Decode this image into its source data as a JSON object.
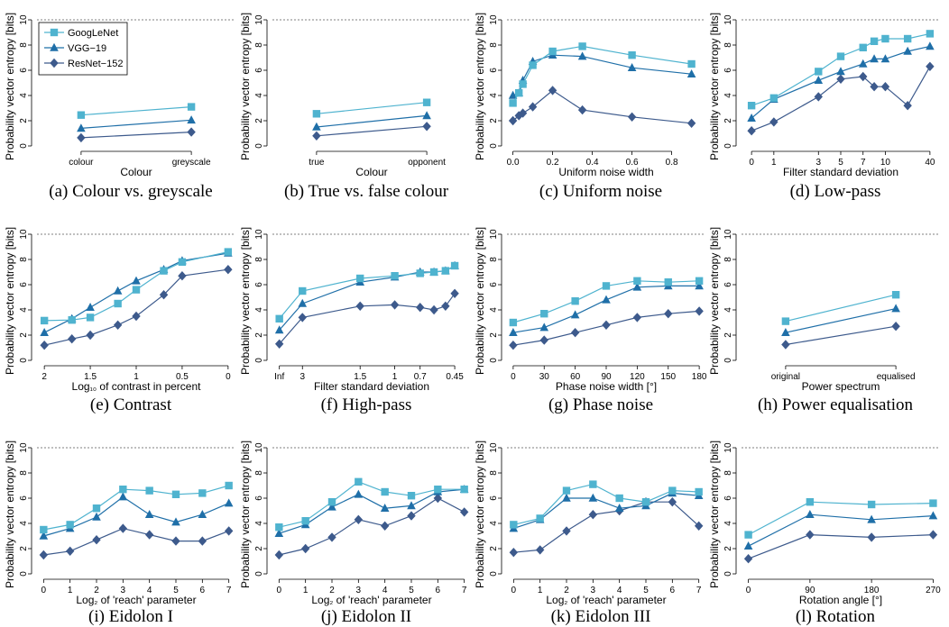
{
  "figure": {
    "colors": {
      "googlenet": "#4fb3cf",
      "vgg": "#1f6fa8",
      "resnet": "#3d5a8c",
      "axis": "#000000",
      "ref": "#555555"
    },
    "legend": {
      "items": [
        {
          "name": "GoogLeNet",
          "marker": "square"
        },
        {
          "name": "VGG−19",
          "marker": "triangle"
        },
        {
          "name": "ResNet−152",
          "marker": "diamond"
        }
      ]
    }
  },
  "chart_data": [
    {
      "type": "line",
      "caption": "(a) Colour vs. greyscale",
      "xlabel": "Colour",
      "ylabel": "Probability vector entropy [bits]",
      "ylim": [
        0,
        10
      ],
      "yticks": [
        0,
        2,
        4,
        6,
        8,
        10
      ],
      "reference_line": 10,
      "xlim": [
        0.6,
        2.4
      ],
      "xticks": [
        {
          "v": 1,
          "label": "colour"
        },
        {
          "v": 2,
          "label": "greyscale"
        }
      ],
      "x": [
        1,
        2
      ],
      "series": [
        {
          "name": "GoogLeNet",
          "values": [
            2.45,
            3.1
          ]
        },
        {
          "name": "VGG−19",
          "values": [
            1.4,
            2.05
          ]
        },
        {
          "name": "ResNet−152",
          "values": [
            0.65,
            1.1
          ]
        }
      ]
    },
    {
      "type": "line",
      "caption": "(b) True vs. false colour",
      "xlabel": "Colour",
      "ylabel": "Probability vector entropy [bits]",
      "ylim": [
        0,
        10
      ],
      "yticks": [
        0,
        2,
        4,
        6,
        8,
        10
      ],
      "reference_line": 10,
      "xlim": [
        0.6,
        2.4
      ],
      "xticks": [
        {
          "v": 1,
          "label": "true"
        },
        {
          "v": 2,
          "label": "opponent"
        }
      ],
      "x": [
        1,
        2
      ],
      "series": [
        {
          "name": "GoogLeNet",
          "values": [
            2.55,
            3.45
          ]
        },
        {
          "name": "VGG−19",
          "values": [
            1.5,
            2.4
          ]
        },
        {
          "name": "ResNet−152",
          "values": [
            0.8,
            1.55
          ]
        }
      ]
    },
    {
      "type": "line",
      "caption": "(c) Uniform noise",
      "xlabel": "Uniform noise width",
      "ylabel": "Probability vector entropy [bits]",
      "ylim": [
        0,
        10
      ],
      "yticks": [
        0,
        2,
        4,
        6,
        8,
        10
      ],
      "reference_line": 10,
      "xlim": [
        -0.03,
        0.97
      ],
      "xticks": [
        {
          "v": 0,
          "label": "0.0"
        },
        {
          "v": 0.2,
          "label": "0.2"
        },
        {
          "v": 0.4,
          "label": "0.4"
        },
        {
          "v": 0.6,
          "label": "0.6"
        },
        {
          "v": 0.8,
          "label": "0.8"
        }
      ],
      "x": [
        0,
        0.03,
        0.05,
        0.1,
        0.2,
        0.35,
        0.6,
        0.9
      ],
      "series": [
        {
          "name": "GoogLeNet",
          "values": [
            3.4,
            4.2,
            4.9,
            6.4,
            7.5,
            7.9,
            7.2,
            6.5
          ]
        },
        {
          "name": "VGG−19",
          "values": [
            4.0,
            4.2,
            5.2,
            6.7,
            7.2,
            7.1,
            6.2,
            5.7
          ]
        },
        {
          "name": "ResNet−152",
          "values": [
            2.0,
            2.4,
            2.6,
            3.1,
            4.4,
            2.85,
            2.3,
            1.8
          ]
        }
      ]
    },
    {
      "type": "line",
      "caption": "(d) Low-pass",
      "xlabel": "Filter standard deviation",
      "ylabel": "Probability vector entropy [bits]",
      "ylim": [
        0,
        10
      ],
      "yticks": [
        0,
        2,
        4,
        6,
        8,
        10
      ],
      "reference_line": 10,
      "xlim": [
        -0.45,
        8.45
      ],
      "xticks": [
        {
          "v": 0,
          "label": "0"
        },
        {
          "v": 1,
          "label": "1"
        },
        {
          "v": 3,
          "label": "3"
        },
        {
          "v": 4,
          "label": "5"
        },
        {
          "v": 5,
          "label": "7"
        },
        {
          "v": 6,
          "label": "10"
        },
        {
          "v": 8,
          "label": "40"
        }
      ],
      "x": [
        0,
        1,
        3,
        4,
        5,
        5.5,
        6,
        7,
        8
      ],
      "series": [
        {
          "name": "GoogLeNet",
          "values": [
            3.2,
            3.8,
            5.9,
            7.1,
            7.8,
            8.3,
            8.5,
            8.5,
            8.9
          ]
        },
        {
          "name": "VGG−19",
          "values": [
            2.2,
            3.7,
            5.2,
            5.9,
            6.5,
            6.9,
            6.9,
            7.5,
            7.9
          ]
        },
        {
          "name": "ResNet−152",
          "values": [
            1.2,
            1.9,
            3.9,
            5.3,
            5.5,
            4.7,
            4.7,
            3.2,
            6.3
          ]
        }
      ]
    },
    {
      "type": "line",
      "caption": "(e) Contrast",
      "xlabel": "Log₁₀ of contrast in percent",
      "ylabel": "Probability vector entropy [bits]",
      "ylim": [
        0,
        10
      ],
      "yticks": [
        0,
        2,
        4,
        6,
        8,
        10
      ],
      "reference_line": 10,
      "xlim": [
        2.08,
        -0.08
      ],
      "xticks": [
        {
          "v": 2,
          "label": "2"
        },
        {
          "v": 1.5,
          "label": "1.5"
        },
        {
          "v": 1,
          "label": "1"
        },
        {
          "v": 0.5,
          "label": "0.5"
        },
        {
          "v": 0,
          "label": "0"
        }
      ],
      "x": [
        2,
        1.7,
        1.5,
        1.2,
        1,
        0.7,
        0.5,
        0
      ],
      "series": [
        {
          "name": "GoogLeNet",
          "values": [
            3.15,
            3.2,
            3.4,
            4.5,
            5.6,
            7.1,
            7.8,
            8.6
          ]
        },
        {
          "name": "VGG−19",
          "values": [
            2.2,
            3.3,
            4.2,
            5.5,
            6.3,
            7.2,
            7.9,
            8.5
          ]
        },
        {
          "name": "ResNet−152",
          "values": [
            1.2,
            1.7,
            2.0,
            2.8,
            3.5,
            5.2,
            6.7,
            7.2
          ]
        }
      ]
    },
    {
      "type": "line",
      "caption": "(f) High-pass",
      "xlabel": "Filter standard deviation",
      "ylabel": "Probability vector entropy [bits]",
      "ylim": [
        0,
        10
      ],
      "yticks": [
        0,
        2,
        4,
        6,
        8,
        10
      ],
      "reference_line": 10,
      "xlim": [
        -0.3,
        8.3
      ],
      "xticks": [
        {
          "v": 0,
          "label": "Inf"
        },
        {
          "v": 1,
          "label": "3"
        },
        {
          "v": 3.5,
          "label": "1.5"
        },
        {
          "v": 5,
          "label": "1"
        },
        {
          "v": 6.1,
          "label": "0.7"
        },
        {
          "v": 7.6,
          "label": "0.45"
        }
      ],
      "x": [
        0,
        1,
        3.5,
        5,
        6.1,
        6.7,
        7.2,
        7.6
      ],
      "series": [
        {
          "name": "GoogLeNet",
          "values": [
            3.3,
            5.5,
            6.5,
            6.7,
            6.9,
            7.0,
            7.1,
            7.5
          ]
        },
        {
          "name": "VGG−19",
          "values": [
            2.4,
            4.5,
            6.2,
            6.6,
            7.0,
            7.0,
            7.1,
            7.5
          ]
        },
        {
          "name": "ResNet−152",
          "values": [
            1.3,
            3.4,
            4.3,
            4.4,
            4.2,
            4.0,
            4.3,
            5.3
          ]
        }
      ]
    },
    {
      "type": "line",
      "caption": "(g) Phase noise",
      "xlabel": "Phase noise width [°]",
      "ylabel": "Probability vector entropy [bits]",
      "ylim": [
        0,
        10
      ],
      "yticks": [
        0,
        2,
        4,
        6,
        8,
        10
      ],
      "reference_line": 10,
      "xlim": [
        -6,
        186
      ],
      "xticks": [
        {
          "v": 0,
          "label": "0"
        },
        {
          "v": 30,
          "label": "30"
        },
        {
          "v": 60,
          "label": "60"
        },
        {
          "v": 90,
          "label": "90"
        },
        {
          "v": 120,
          "label": "120"
        },
        {
          "v": 150,
          "label": "150"
        },
        {
          "v": 180,
          "label": "180"
        }
      ],
      "x": [
        0,
        30,
        60,
        90,
        120,
        150,
        180
      ],
      "series": [
        {
          "name": "GoogLeNet",
          "values": [
            3.0,
            3.7,
            4.7,
            5.9,
            6.3,
            6.2,
            6.3
          ]
        },
        {
          "name": "VGG−19",
          "values": [
            2.2,
            2.6,
            3.6,
            4.8,
            5.8,
            5.9,
            5.9
          ]
        },
        {
          "name": "ResNet−152",
          "values": [
            1.2,
            1.6,
            2.2,
            2.8,
            3.4,
            3.7,
            3.9
          ]
        }
      ]
    },
    {
      "type": "line",
      "caption": "(h) Power equalisation",
      "xlabel": "Power spectrum",
      "ylabel": "Probability vector entropy [bits]",
      "ylim": [
        0,
        10
      ],
      "yticks": [
        0,
        2,
        4,
        6,
        8,
        10
      ],
      "reference_line": 10,
      "xlim": [
        0.6,
        2.4
      ],
      "xticks": [
        {
          "v": 1,
          "label": "original"
        },
        {
          "v": 2,
          "label": "equalised"
        }
      ],
      "x": [
        1,
        2
      ],
      "series": [
        {
          "name": "GoogLeNet",
          "values": [
            3.1,
            5.2
          ]
        },
        {
          "name": "VGG−19",
          "values": [
            2.2,
            4.1
          ]
        },
        {
          "name": "ResNet−152",
          "values": [
            1.25,
            2.7
          ]
        }
      ]
    },
    {
      "type": "line",
      "caption": "(i) Eidolon I",
      "xlabel": "Log₂ of 'reach' parameter",
      "ylabel": "Probability vector entropy [bits]",
      "ylim": [
        0,
        10
      ],
      "yticks": [
        0,
        2,
        4,
        6,
        8,
        10
      ],
      "reference_line": 10,
      "xlim": [
        -0.25,
        7.25
      ],
      "xticks": [
        {
          "v": 0,
          "label": "0"
        },
        {
          "v": 1,
          "label": "1"
        },
        {
          "v": 2,
          "label": "2"
        },
        {
          "v": 3,
          "label": "3"
        },
        {
          "v": 4,
          "label": "4"
        },
        {
          "v": 5,
          "label": "5"
        },
        {
          "v": 6,
          "label": "6"
        },
        {
          "v": 7,
          "label": "7"
        }
      ],
      "x": [
        0,
        1,
        2,
        3,
        4,
        5,
        6,
        7
      ],
      "series": [
        {
          "name": "GoogLeNet",
          "values": [
            3.5,
            3.9,
            5.2,
            6.7,
            6.6,
            6.3,
            6.4,
            7.0
          ]
        },
        {
          "name": "VGG−19",
          "values": [
            3.0,
            3.6,
            4.5,
            6.1,
            4.7,
            4.1,
            4.7,
            5.6
          ]
        },
        {
          "name": "ResNet−152",
          "values": [
            1.5,
            1.8,
            2.7,
            3.6,
            3.1,
            2.6,
            2.6,
            3.4
          ]
        }
      ]
    },
    {
      "type": "line",
      "caption": "(j) Eidolon II",
      "xlabel": "Log₂ of 'reach' parameter",
      "ylabel": "Probability vector entropy [bits]",
      "ylim": [
        0,
        10
      ],
      "yticks": [
        0,
        2,
        4,
        6,
        8,
        10
      ],
      "reference_line": 10,
      "xlim": [
        -0.25,
        7.25
      ],
      "xticks": [
        {
          "v": 0,
          "label": "0"
        },
        {
          "v": 1,
          "label": "1"
        },
        {
          "v": 2,
          "label": "2"
        },
        {
          "v": 3,
          "label": "3"
        },
        {
          "v": 4,
          "label": "4"
        },
        {
          "v": 5,
          "label": "5"
        },
        {
          "v": 6,
          "label": "6"
        },
        {
          "v": 7,
          "label": "7"
        }
      ],
      "x": [
        0,
        1,
        2,
        3,
        4,
        5,
        6,
        7
      ],
      "series": [
        {
          "name": "GoogLeNet",
          "values": [
            3.7,
            4.2,
            5.7,
            7.3,
            6.5,
            6.2,
            6.7,
            6.7
          ]
        },
        {
          "name": "VGG−19",
          "values": [
            3.2,
            3.9,
            5.3,
            6.3,
            5.2,
            5.4,
            6.5,
            6.7
          ]
        },
        {
          "name": "ResNet−152",
          "values": [
            1.5,
            2.0,
            2.9,
            4.3,
            3.8,
            4.6,
            6.0,
            4.9
          ]
        }
      ]
    },
    {
      "type": "line",
      "caption": "(k) Eidolon III",
      "xlabel": "Log₂ of 'reach' parameter",
      "ylabel": "Probability vector entropy [bits]",
      "ylim": [
        0,
        10
      ],
      "yticks": [
        0,
        2,
        4,
        6,
        8,
        10
      ],
      "reference_line": 10,
      "xlim": [
        -0.25,
        7.25
      ],
      "xticks": [
        {
          "v": 0,
          "label": "0"
        },
        {
          "v": 1,
          "label": "1"
        },
        {
          "v": 2,
          "label": "2"
        },
        {
          "v": 3,
          "label": "3"
        },
        {
          "v": 4,
          "label": "4"
        },
        {
          "v": 5,
          "label": "5"
        },
        {
          "v": 6,
          "label": "6"
        },
        {
          "v": 7,
          "label": "7"
        }
      ],
      "x": [
        0,
        1,
        2,
        3,
        4,
        5,
        6,
        7
      ],
      "series": [
        {
          "name": "GoogLeNet",
          "values": [
            3.9,
            4.4,
            6.6,
            7.1,
            6.0,
            5.7,
            6.6,
            6.5
          ]
        },
        {
          "name": "VGG−19",
          "values": [
            3.6,
            4.3,
            6.0,
            6.0,
            5.2,
            5.4,
            6.4,
            6.2
          ]
        },
        {
          "name": "ResNet−152",
          "values": [
            1.7,
            1.9,
            3.4,
            4.7,
            5.0,
            5.7,
            5.7,
            3.8
          ]
        }
      ]
    },
    {
      "type": "line",
      "caption": "(l) Rotation",
      "xlabel": "Rotation angle [°]",
      "ylabel": "Probability vector entropy [bits]",
      "ylim": [
        0,
        10
      ],
      "yticks": [
        0,
        2,
        4,
        6,
        8,
        10
      ],
      "reference_line": 10,
      "xlim": [
        -10,
        280
      ],
      "xticks": [
        {
          "v": 0,
          "label": "0"
        },
        {
          "v": 90,
          "label": "90"
        },
        {
          "v": 180,
          "label": "180"
        },
        {
          "v": 270,
          "label": "270"
        }
      ],
      "x": [
        0,
        90,
        180,
        270
      ],
      "series": [
        {
          "name": "GoogLeNet",
          "values": [
            3.1,
            5.7,
            5.5,
            5.6
          ]
        },
        {
          "name": "VGG−19",
          "values": [
            2.2,
            4.7,
            4.3,
            4.6
          ]
        },
        {
          "name": "ResNet−152",
          "values": [
            1.2,
            3.1,
            2.9,
            3.1
          ]
        }
      ]
    }
  ]
}
